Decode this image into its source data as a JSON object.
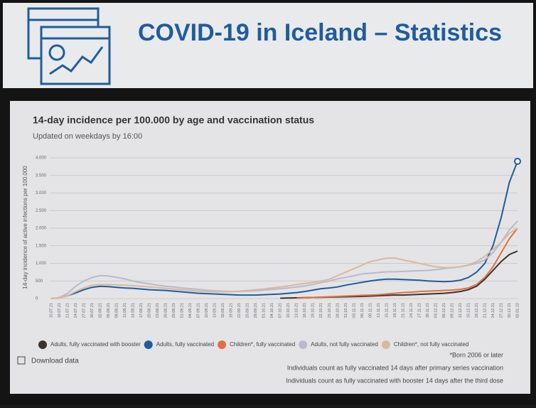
{
  "header": {
    "title": "COVID-19 in Iceland – Statistics"
  },
  "chart_data": {
    "type": "line",
    "title": "14-day incidence per 100.000 by age and vaccination status",
    "subtitle": "Updated on weekdays by 16:00",
    "y_label": "14-day incidence of active infections per 100.000",
    "categories": [
      "15.07.21",
      "18.07.21",
      "21.07.21",
      "24.07.21",
      "27.07.21",
      "30.07.21",
      "02.08.21",
      "05.08.21",
      "08.08.21",
      "11.08.21",
      "14.08.21",
      "17.08.21",
      "20.08.21",
      "23.08.21",
      "26.08.21",
      "29.08.21",
      "01.09.21",
      "04.09.21",
      "07.09.21",
      "10.09.21",
      "13.09.21",
      "16.09.21",
      "19.09.21",
      "22.09.21",
      "25.09.21",
      "28.09.21",
      "01.10.21",
      "04.10.21",
      "07.10.21",
      "10.10.21",
      "13.10.21",
      "16.10.21",
      "19.10.21",
      "22.10.21",
      "25.10.21",
      "28.10.21",
      "31.10.21",
      "03.11.21",
      "06.11.21",
      "09.11.21",
      "12.11.21",
      "15.11.21",
      "18.11.21",
      "21.11.21",
      "24.11.21",
      "27.11.21",
      "30.11.21",
      "03.12.21",
      "06.12.21",
      "09.12.21",
      "12.12.21",
      "15.12.21",
      "18.12.21",
      "21.12.21",
      "24.12.21",
      "27.12.21",
      "30.12.21",
      "02.01.22"
    ],
    "ylim": [
      0,
      4000
    ],
    "yticks": [
      0,
      500,
      {
        "value": 1000,
        "label": "1.000"
      },
      {
        "value": 1500,
        "label": "1.500"
      },
      {
        "value": 2000,
        "label": "2.000"
      },
      {
        "value": 2500,
        "label": "2.500"
      },
      {
        "value": 3000,
        "label": "3.000"
      },
      {
        "value": 3500,
        "label": "3.500"
      },
      {
        "value": 4000,
        "label": "4.000"
      }
    ],
    "grid": true,
    "series": [
      {
        "name": "Adults, fully vaccinated with booster",
        "color": "#3a3330",
        "values": [
          null,
          null,
          null,
          null,
          null,
          null,
          null,
          null,
          null,
          null,
          null,
          null,
          null,
          null,
          null,
          null,
          null,
          null,
          null,
          null,
          null,
          null,
          null,
          null,
          null,
          null,
          null,
          null,
          10,
          15,
          20,
          25,
          30,
          35,
          40,
          45,
          50,
          55,
          60,
          70,
          80,
          90,
          100,
          100,
          110,
          120,
          130,
          140,
          150,
          170,
          200,
          250,
          350,
          550,
          800,
          1050,
          1250,
          1350
        ]
      },
      {
        "name": "Adults, fully vaccinated",
        "color": "#1f5c9e",
        "values": [
          0,
          20,
          80,
          160,
          250,
          320,
          350,
          340,
          320,
          300,
          290,
          270,
          250,
          240,
          230,
          210,
          190,
          170,
          150,
          140,
          130,
          120,
          110,
          100,
          100,
          100,
          110,
          120,
          130,
          150,
          170,
          200,
          240,
          280,
          300,
          330,
          380,
          420,
          460,
          500,
          530,
          550,
          550,
          540,
          530,
          520,
          500,
          490,
          480,
          490,
          520,
          600,
          750,
          1000,
          1500,
          2300,
          3300,
          3900
        ]
      },
      {
        "name": "Children*, fully vaccinated",
        "color": "#e07040",
        "values": [
          null,
          null,
          null,
          null,
          null,
          null,
          null,
          null,
          null,
          null,
          null,
          null,
          null,
          null,
          null,
          null,
          null,
          null,
          null,
          null,
          null,
          null,
          null,
          null,
          null,
          null,
          null,
          null,
          null,
          null,
          10,
          20,
          30,
          40,
          50,
          60,
          70,
          80,
          90,
          100,
          110,
          130,
          150,
          170,
          180,
          200,
          210,
          220,
          230,
          240,
          260,
          300,
          400,
          600,
          900,
          1300,
          1700,
          2000
        ]
      },
      {
        "name": "Adults, not fully vaccinated",
        "color": "#b9b9c9",
        "values": [
          0,
          30,
          150,
          350,
          500,
          600,
          650,
          640,
          600,
          560,
          500,
          450,
          420,
          380,
          350,
          330,
          300,
          280,
          260,
          240,
          220,
          210,
          200,
          200,
          210,
          220,
          240,
          260,
          280,
          300,
          330,
          360,
          400,
          450,
          500,
          560,
          600,
          650,
          700,
          720,
          740,
          760,
          760,
          770,
          780,
          790,
          800,
          820,
          850,
          880,
          900,
          950,
          1000,
          1100,
          1300,
          1600,
          1950,
          2200
        ]
      },
      {
        "name": "Children*, not fully vaccinated",
        "color": "#d9b8a0",
        "values": [
          0,
          20,
          80,
          200,
          300,
          380,
          400,
          400,
          390,
          380,
          370,
          350,
          330,
          310,
          290,
          270,
          250,
          230,
          210,
          200,
          190,
          190,
          200,
          210,
          230,
          250,
          270,
          300,
          330,
          360,
          400,
          430,
          460,
          500,
          550,
          650,
          750,
          850,
          950,
          1050,
          1100,
          1150,
          1150,
          1100,
          1050,
          1000,
          950,
          900,
          880,
          870,
          900,
          950,
          1050,
          1200,
          1400,
          1600,
          1850,
          2000
        ]
      }
    ],
    "notes": [
      "*Born 2006 or later",
      "Individuals count as fully vaccinated 14 days after primary series vaccination",
      "Individuals count as fully vaccinated with booster 14 days after the third dose"
    ],
    "download_label": "Download data"
  }
}
